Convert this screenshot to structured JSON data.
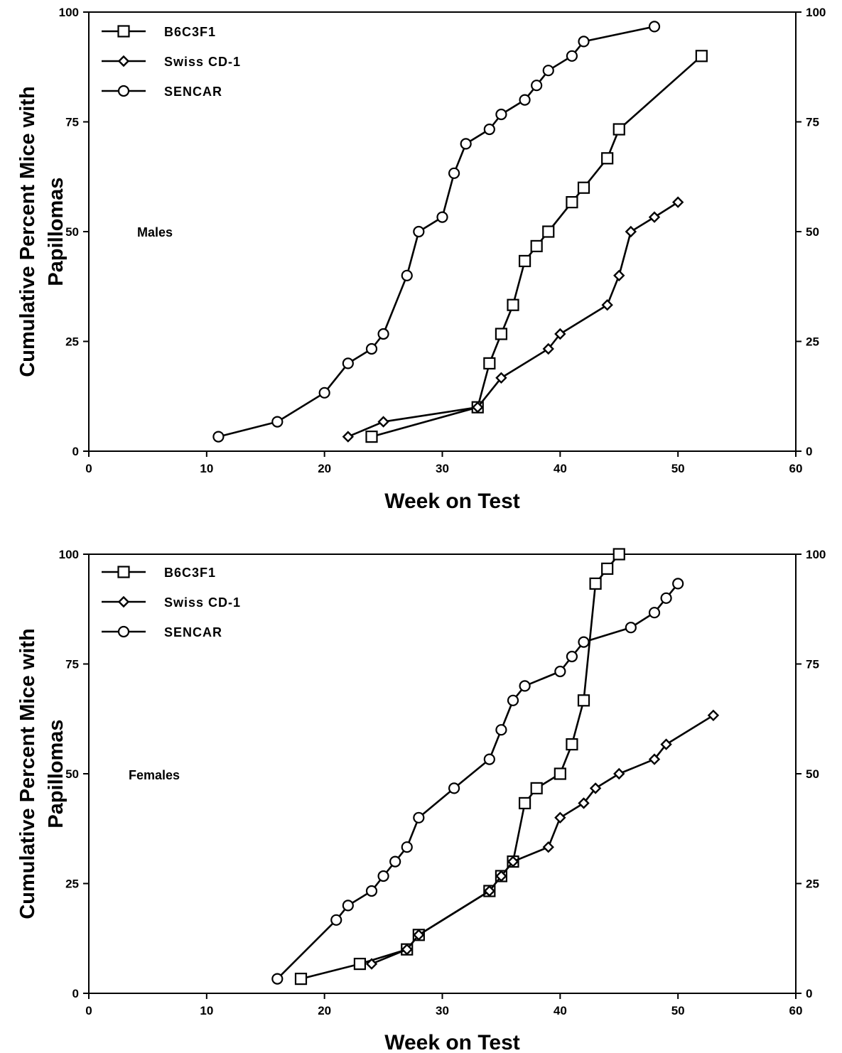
{
  "chart_data": [
    {
      "type": "line",
      "annotation": "Males",
      "xlabel": "Week on Test",
      "ylabel_lines": [
        "Cumulative Percent Mice with",
        "Papillomas"
      ],
      "xlim": [
        0,
        60
      ],
      "ylim": [
        0,
        100
      ],
      "xticks": [
        "0",
        "10",
        "20",
        "30",
        "40",
        "50",
        "60"
      ],
      "yticks": [
        "0",
        "25",
        "50",
        "75",
        "100"
      ],
      "yticks_right": [
        "0",
        "25",
        "50",
        "75",
        "100"
      ],
      "legend_position": "top-left",
      "series": [
        {
          "name": "B6C3F1",
          "marker": "square",
          "x": [
            24,
            33,
            34,
            35,
            36,
            37,
            38,
            39,
            41,
            42,
            44,
            45,
            52
          ],
          "y": [
            3.3,
            10,
            20,
            26.7,
            33.3,
            43.3,
            46.7,
            50,
            56.7,
            60,
            66.7,
            73.3,
            90
          ]
        },
        {
          "name": "Swiss  CD-1",
          "marker": "diamond",
          "x": [
            22,
            25,
            33,
            35,
            39,
            40,
            44,
            45,
            46,
            48,
            50
          ],
          "y": [
            3.3,
            6.7,
            10,
            16.7,
            23.3,
            26.7,
            33.3,
            40,
            50,
            53.3,
            56.7
          ]
        },
        {
          "name": "SENCAR",
          "marker": "circle",
          "x": [
            11,
            16,
            20,
            22,
            24,
            25,
            27,
            28,
            30,
            31,
            32,
            34,
            35,
            37,
            38,
            39,
            41,
            42,
            48
          ],
          "y": [
            3.3,
            6.7,
            13.3,
            20,
            23.3,
            26.7,
            40,
            50,
            53.3,
            63.3,
            70,
            73.3,
            76.7,
            80,
            83.3,
            86.7,
            90,
            93.3,
            96.7
          ]
        }
      ]
    },
    {
      "type": "line",
      "annotation": "Females",
      "xlabel": "Week on Test",
      "ylabel_lines": [
        "Cumulative Percent Mice with",
        "Papillomas"
      ],
      "xlim": [
        0,
        60
      ],
      "ylim": [
        0,
        100
      ],
      "xticks": [
        "0",
        "10",
        "20",
        "30",
        "40",
        "50",
        "60"
      ],
      "yticks": [
        "0",
        "25",
        "50",
        "75",
        "100"
      ],
      "yticks_right": [
        "0",
        "25",
        "50",
        "75",
        "100"
      ],
      "legend_position": "top-left",
      "series": [
        {
          "name": "B6C3F1",
          "marker": "square",
          "x": [
            18,
            23,
            27,
            28,
            34,
            35,
            36,
            37,
            38,
            40,
            41,
            42,
            43,
            44,
            45
          ],
          "y": [
            3.3,
            6.7,
            10,
            13.3,
            23.3,
            26.7,
            30,
            43.3,
            46.7,
            50,
            56.7,
            66.7,
            93.3,
            96.7,
            100
          ]
        },
        {
          "name": "Swiss  CD-1",
          "marker": "diamond",
          "x": [
            24,
            27,
            28,
            34,
            35,
            36,
            39,
            40,
            42,
            43,
            45,
            48,
            49,
            53
          ],
          "y": [
            6.7,
            10,
            13.3,
            23.3,
            26.7,
            30,
            33.3,
            40,
            43.3,
            46.7,
            50,
            53.3,
            56.7,
            63.3
          ]
        },
        {
          "name": "SENCAR",
          "marker": "circle",
          "x": [
            16,
            21,
            22,
            24,
            25,
            26,
            27,
            28,
            31,
            34,
            35,
            36,
            37,
            40,
            41,
            42,
            46,
            48,
            49,
            50
          ],
          "y": [
            3.3,
            16.7,
            20,
            23.3,
            26.7,
            30,
            33.3,
            40,
            46.7,
            53.3,
            60,
            66.7,
            70,
            73.3,
            76.7,
            80,
            83.3,
            86.7,
            90,
            93.3
          ]
        }
      ]
    }
  ]
}
